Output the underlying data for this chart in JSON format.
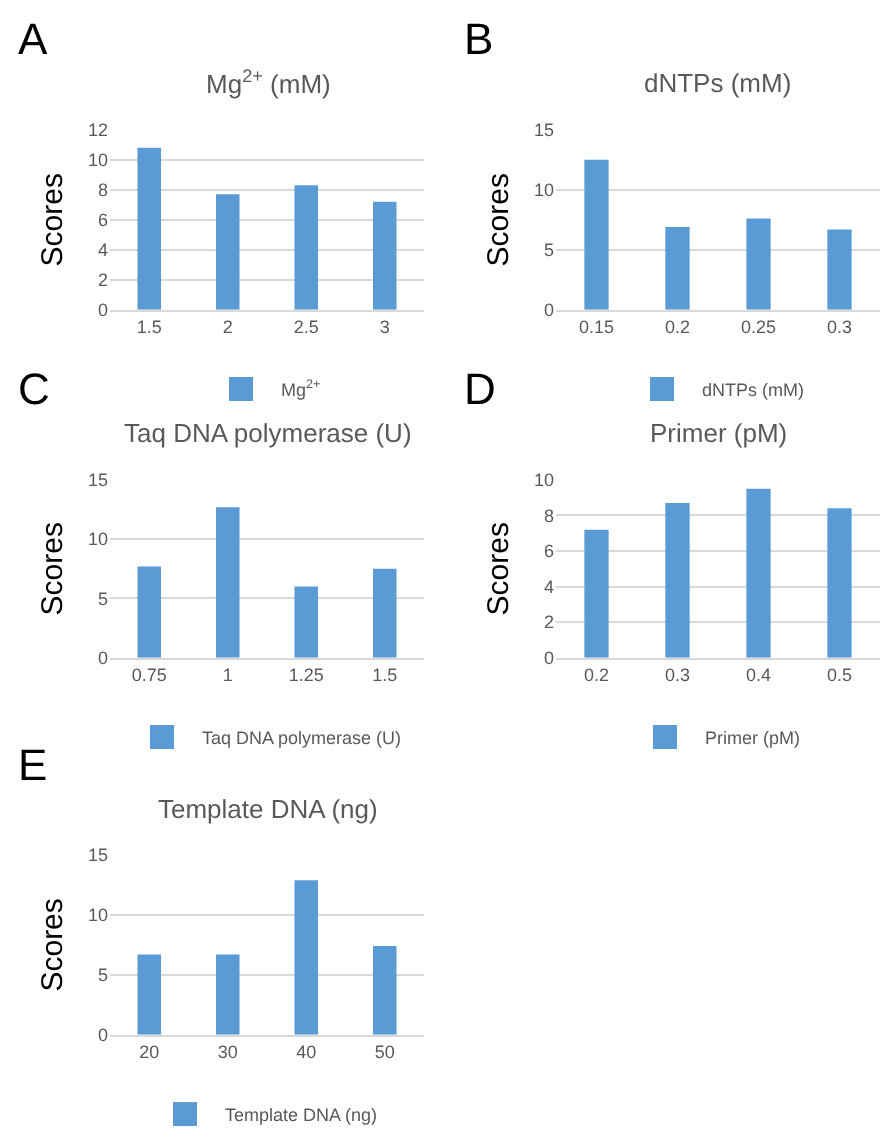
{
  "chart_data": [
    {
      "type": "bar",
      "title": "Mg$^{2+}$ (mM)",
      "ylabel": "Scores",
      "annotations": [
        "A"
      ],
      "categories": [
        "1.5",
        "2",
        "2.5",
        "3"
      ],
      "series": [
        {
          "name": "Mg$^{2+}$",
          "color": "#5b9bd5",
          "values": [
            10.8,
            7.7,
            8.3,
            7.2
          ]
        }
      ],
      "ylim": [
        0,
        12
      ],
      "yticks": [
        0,
        2,
        4,
        6,
        8,
        10,
        12
      ],
      "grid": "y",
      "legend": "bottom"
    },
    {
      "type": "bar",
      "title": "dNTPs (mM)",
      "ylabel": "Scores",
      "annotations": [
        "B"
      ],
      "categories": [
        "0.15",
        "0.2",
        "0.25",
        "0.3"
      ],
      "series": [
        {
          "name": "dNTPs (mM)",
          "color": "#5b9bd5",
          "values": [
            12.5,
            6.9,
            7.6,
            6.7
          ]
        }
      ],
      "ylim": [
        0,
        15
      ],
      "yticks": [
        0,
        5,
        10,
        15
      ],
      "grid": "y",
      "legend": "bottom"
    },
    {
      "type": "bar",
      "title": "Taq DNA polymerase (U)",
      "ylabel": "Scores",
      "annotations": [
        "C"
      ],
      "categories": [
        "0.75",
        "1",
        "1.25",
        "1.5"
      ],
      "series": [
        {
          "name": "Taq DNA polymerase (U)",
          "color": "#5b9bd5",
          "values": [
            7.7,
            12.7,
            6.0,
            7.5
          ]
        }
      ],
      "ylim": [
        0,
        15
      ],
      "yticks": [
        0,
        5,
        10,
        15
      ],
      "grid": "y",
      "legend": "bottom"
    },
    {
      "type": "bar",
      "title": "Primer (pM)",
      "ylabel": "Scores",
      "annotations": [
        "D"
      ],
      "categories": [
        "0.2",
        "0.3",
        "0.4",
        "0.5"
      ],
      "series": [
        {
          "name": "Primer (pM)",
          "color": "#5b9bd5",
          "values": [
            7.2,
            8.7,
            9.5,
            8.4
          ]
        }
      ],
      "ylim": [
        0,
        10
      ],
      "yticks": [
        0,
        2,
        4,
        6,
        8,
        10
      ],
      "grid": "y",
      "legend": "bottom"
    },
    {
      "type": "bar",
      "title": "Template DNA (ng)",
      "ylabel": "Scores",
      "annotations": [
        "E"
      ],
      "categories": [
        "20",
        "30",
        "40",
        "50"
      ],
      "series": [
        {
          "name": "Template DNA (ng)",
          "color": "#5b9bd5",
          "values": [
            6.7,
            6.7,
            12.9,
            7.4
          ]
        }
      ],
      "ylim": [
        0,
        15
      ],
      "yticks": [
        0,
        5,
        10,
        15
      ],
      "grid": "y",
      "legend": "bottom"
    }
  ]
}
